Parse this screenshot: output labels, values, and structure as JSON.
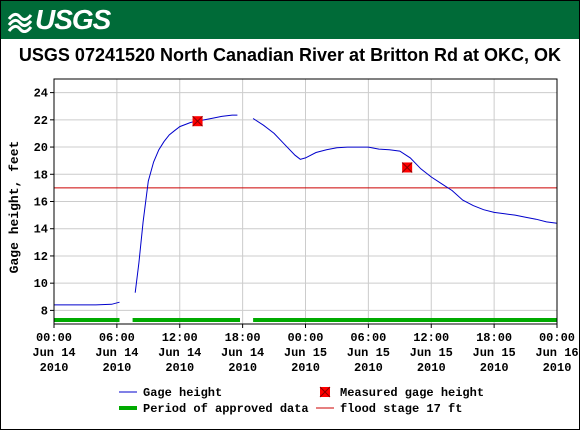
{
  "logo": {
    "text": "USGS"
  },
  "chart_data": {
    "type": "line",
    "title": "USGS 07241520 North Canadian River at Britton Rd at OKC, OK",
    "ylabel": "Gage height, feet",
    "xlabel": "",
    "ylim": [
      7,
      25
    ],
    "yticks": [
      8,
      10,
      12,
      14,
      16,
      18,
      20,
      22,
      24
    ],
    "xlim_hours": [
      0,
      48
    ],
    "xticks": [
      {
        "hour": 0,
        "lines": [
          "00:00",
          "Jun 14",
          "2010"
        ]
      },
      {
        "hour": 6,
        "lines": [
          "06:00",
          "Jun 14",
          "2010"
        ]
      },
      {
        "hour": 12,
        "lines": [
          "12:00",
          "Jun 14",
          "2010"
        ]
      },
      {
        "hour": 18,
        "lines": [
          "18:00",
          "Jun 14",
          "2010"
        ]
      },
      {
        "hour": 24,
        "lines": [
          "00:00",
          "Jun 15",
          "2010"
        ]
      },
      {
        "hour": 30,
        "lines": [
          "06:00",
          "Jun 15",
          "2010"
        ]
      },
      {
        "hour": 36,
        "lines": [
          "12:00",
          "Jun 15",
          "2010"
        ]
      },
      {
        "hour": 42,
        "lines": [
          "18:00",
          "Jun 15",
          "2010"
        ]
      },
      {
        "hour": 48,
        "lines": [
          "00:00",
          "Jun 16",
          "2010"
        ]
      }
    ],
    "grid": true,
    "series": [
      {
        "name": "Gage height",
        "color": "#0000cc",
        "segments": [
          [
            [
              0,
              8.4
            ],
            [
              2,
              8.4
            ],
            [
              4,
              8.4
            ],
            [
              5.5,
              8.45
            ],
            [
              6.25,
              8.6
            ]
          ],
          [
            [
              7.75,
              9.3
            ],
            [
              8.1,
              11.5
            ],
            [
              8.5,
              14.5
            ],
            [
              9,
              17.5
            ],
            [
              9.5,
              18.9
            ],
            [
              10,
              19.8
            ],
            [
              10.5,
              20.4
            ],
            [
              11,
              20.9
            ],
            [
              11.5,
              21.2
            ],
            [
              12,
              21.5
            ],
            [
              13,
              21.8
            ],
            [
              13.5,
              21.9
            ],
            [
              14,
              21.95
            ],
            [
              15,
              22.1
            ],
            [
              16,
              22.25
            ],
            [
              17,
              22.35
            ],
            [
              17.5,
              22.35
            ]
          ],
          [
            [
              19,
              22.1
            ],
            [
              20,
              21.6
            ],
            [
              21,
              21
            ],
            [
              22,
              20.2
            ],
            [
              23,
              19.4
            ],
            [
              23.5,
              19.1
            ],
            [
              24,
              19.2
            ],
            [
              25,
              19.6
            ],
            [
              26,
              19.8
            ],
            [
              27,
              19.95
            ],
            [
              28,
              20
            ],
            [
              29,
              20
            ],
            [
              30,
              20
            ],
            [
              31,
              19.85
            ],
            [
              32,
              19.8
            ],
            [
              33,
              19.7
            ],
            [
              34,
              19.2
            ],
            [
              35,
              18.4
            ],
            [
              36,
              17.8
            ],
            [
              37,
              17.3
            ],
            [
              38,
              16.8
            ],
            [
              39,
              16.1
            ],
            [
              40,
              15.7
            ],
            [
              41,
              15.4
            ],
            [
              42,
              15.2
            ],
            [
              43,
              15.1
            ],
            [
              44,
              15
            ],
            [
              45,
              14.85
            ],
            [
              46,
              14.7
            ],
            [
              47,
              14.5
            ],
            [
              48,
              14.4
            ]
          ]
        ]
      }
    ],
    "measured": {
      "name": "Measured gage height",
      "color": "#ff0000",
      "points": [
        [
          13.7,
          21.9
        ],
        [
          33.7,
          18.5
        ]
      ]
    },
    "flood_stage": {
      "name": "flood stage 17 ft",
      "value": 17,
      "color": "#cc0000"
    },
    "approved": {
      "name": "Period of approved data",
      "color": "#00aa00",
      "ranges": [
        [
          0,
          6.25
        ],
        [
          7.5,
          17.75
        ],
        [
          19,
          48
        ]
      ]
    },
    "legend": {
      "placement": "bottom",
      "items": [
        {
          "key": "gage",
          "label": "Gage height"
        },
        {
          "key": "measured",
          "label": "Measured gage height"
        },
        {
          "key": "approved",
          "label": "Period of approved data"
        },
        {
          "key": "flood",
          "label": "flood stage 17 ft"
        }
      ]
    }
  }
}
